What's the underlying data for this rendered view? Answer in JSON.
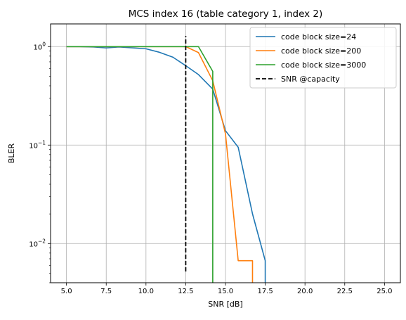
{
  "chart_data": {
    "type": "line",
    "title": "MCS index 16 (table category 1, index 2)",
    "xlabel": "SNR [dB]",
    "ylabel": "BLER",
    "xlim": [
      4.0,
      26.0
    ],
    "ylim": [
      0.004,
      1.7
    ],
    "yscale": "log",
    "grid": true,
    "legend_position": "top-right",
    "xticks": [
      5.0,
      7.5,
      10.0,
      12.5,
      15.0,
      17.5,
      20.0,
      22.5,
      25.0
    ],
    "xtick_labels": [
      "5.0",
      "7.5",
      "10.0",
      "12.5",
      "15.0",
      "17.5",
      "20.0",
      "22.5",
      "25.0"
    ],
    "yticks": [
      {
        "value": 1,
        "base": "10",
        "exp": "0"
      },
      {
        "value": 0.1,
        "base": "10",
        "exp": "−1"
      },
      {
        "value": 0.01,
        "base": "10",
        "exp": "−2"
      }
    ],
    "series": [
      {
        "name": "code block size=24",
        "color": "#1f77b4",
        "style": "solid",
        "x": [
          5.0,
          5.8,
          6.7,
          7.5,
          8.3,
          9.2,
          10.0,
          10.8,
          11.7,
          12.5,
          13.3,
          14.2,
          15.0,
          15.8,
          16.7,
          17.5,
          17.5
        ],
        "y": [
          1.0,
          1.0,
          0.99,
          0.97,
          0.99,
          0.97,
          0.95,
          0.88,
          0.78,
          0.64,
          0.52,
          0.37,
          0.14,
          0.095,
          0.02,
          0.0067,
          0.0038
        ]
      },
      {
        "name": "code block size=200",
        "color": "#ff7f0e",
        "style": "solid",
        "x": [
          5.0,
          5.8,
          6.7,
          7.5,
          8.3,
          9.2,
          10.0,
          10.8,
          11.7,
          12.5,
          13.3,
          14.2,
          15.0,
          15.8,
          16.7,
          16.7
        ],
        "y": [
          1.0,
          1.0,
          1.0,
          1.0,
          1.0,
          1.0,
          1.0,
          1.0,
          1.0,
          1.0,
          0.87,
          0.45,
          0.13,
          0.0067,
          0.0067,
          0.0038
        ]
      },
      {
        "name": "code block size=3000",
        "color": "#2ca02c",
        "style": "solid",
        "x": [
          5.0,
          5.8,
          6.7,
          7.5,
          8.3,
          9.2,
          10.0,
          10.8,
          11.7,
          12.5,
          13.3,
          14.2,
          14.2
        ],
        "y": [
          1.0,
          1.0,
          1.0,
          1.0,
          1.0,
          1.0,
          1.0,
          1.0,
          1.0,
          1.0,
          1.0,
          0.56,
          0.0038
        ]
      },
      {
        "name": "SNR @capacity",
        "color": "#000000",
        "style": "dashed",
        "x": [
          12.5,
          12.5
        ],
        "y": [
          0.0052,
          1.28
        ]
      }
    ]
  }
}
